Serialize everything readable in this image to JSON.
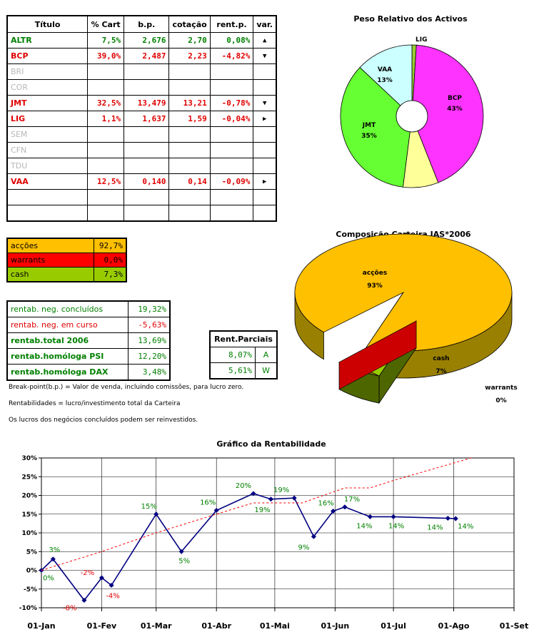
{
  "stocks_table": {
    "headers": [
      "Título",
      "% Cart",
      "b.p.",
      "cotação",
      "rent.p.",
      "var."
    ],
    "rows": [
      {
        "sym": "ALTR",
        "cart": "7,5%",
        "bp": "2,676",
        "cot": "2,70",
        "rent": "0,08%",
        "var": "▲",
        "color": "green"
      },
      {
        "sym": "BCP",
        "cart": "39,0%",
        "bp": "2,487",
        "cot": "2,23",
        "rent": "-4,82%",
        "var": "▼",
        "color": "red"
      },
      {
        "sym": "BRI",
        "cart": "",
        "bp": "",
        "cot": "",
        "rent": "",
        "var": "",
        "color": "gray"
      },
      {
        "sym": "COR",
        "cart": "",
        "bp": "",
        "cot": "",
        "rent": "",
        "var": "",
        "color": "gray"
      },
      {
        "sym": "JMT",
        "cart": "32,5%",
        "bp": "13,479",
        "cot": "13,21",
        "rent": "-0,78%",
        "var": "▼",
        "color": "red"
      },
      {
        "sym": "LIG",
        "cart": "1,1%",
        "bp": "1,637",
        "cot": "1,59",
        "rent": "-0,04%",
        "var": "▶",
        "color": "red"
      },
      {
        "sym": "SEM",
        "cart": "",
        "bp": "",
        "cot": "",
        "rent": "",
        "var": "",
        "color": "gray"
      },
      {
        "sym": "CFN",
        "cart": "",
        "bp": "",
        "cot": "",
        "rent": "",
        "var": "",
        "color": "gray"
      },
      {
        "sym": "TDU",
        "cart": "",
        "bp": "",
        "cot": "",
        "rent": "",
        "var": "",
        "color": "gray"
      },
      {
        "sym": "VAA",
        "cart": "12,5%",
        "bp": "0,140",
        "cot": "0,14",
        "rent": "-0,09%",
        "var": "▶",
        "color": "red"
      },
      {
        "sym": "",
        "cart": "",
        "bp": "",
        "cot": "",
        "rent": "",
        "var": "",
        "color": "gray"
      },
      {
        "sym": "",
        "cart": "",
        "bp": "",
        "cot": "",
        "rent": "",
        "var": "",
        "color": "gray"
      }
    ]
  },
  "composition_table": [
    {
      "label": "acções",
      "value": "92,7%",
      "bg": "#ffc000"
    },
    {
      "label": "warrants",
      "value": "0,0%",
      "bg": "#ff0000"
    },
    {
      "label": "cash",
      "value": "7,3%",
      "bg": "#99cc00"
    }
  ],
  "rent_table": [
    {
      "label": "rentab. neg. concluídos",
      "value": "19,32%",
      "color": "green",
      "bold": false
    },
    {
      "label": "rentab. neg. em curso",
      "value": "-5,63%",
      "color": "red",
      "bold": false
    },
    {
      "label": "rentab.total 2006",
      "value": "13,69%",
      "color": "green",
      "bold": true
    },
    {
      "label": "rentab.homóloga PSI",
      "value": "12,20%",
      "color": "green",
      "bold": true
    },
    {
      "label": "rentab.homóloga DAX",
      "value": "3,48%",
      "color": "green",
      "bold": true
    }
  ],
  "partial_table": {
    "header": "Rent.Parciais",
    "rows": [
      {
        "value": "8,07%",
        "letter": "A"
      },
      {
        "value": "5,61%",
        "letter": "W"
      }
    ]
  },
  "notes": [
    "Break-point(b.p.) = Valor de venda, incluindo comissões, para lucro zero.",
    "Rentabilidades = lucro/investimento total da Carteira",
    "Os lucros dos negócios concluídos podem ser reinvestidos."
  ],
  "colors": {
    "green": "#008000",
    "red": "#e00000",
    "gray": "#b8b8b8"
  },
  "chart_data": [
    {
      "type": "pie",
      "title": "Peso Relativo dos Activos",
      "donut": true,
      "slices": [
        {
          "label": "LIG",
          "value": 1,
          "pct_label": "1%",
          "color": "#99cc33"
        },
        {
          "label": "BCP",
          "value": 43,
          "pct_label": "43%",
          "color": "#ff33ff"
        },
        {
          "label": "",
          "value": 8,
          "pct_label": "",
          "color": "#ffff99"
        },
        {
          "label": "JMT",
          "value": 35,
          "pct_label": "35%",
          "color": "#66ff33"
        },
        {
          "label": "VAA",
          "value": 13,
          "pct_label": "13%",
          "color": "#ccffff"
        }
      ]
    },
    {
      "type": "pie",
      "title": "Composição Carteira JAS*2006",
      "three_d": true,
      "slices": [
        {
          "label": "acções",
          "value": 93,
          "pct_label": "93%",
          "color": "#ffc000",
          "side": "#998000"
        },
        {
          "label": "cash",
          "value": 7,
          "pct_label": "7%",
          "color": "#99cc00",
          "side": "#4d6600"
        },
        {
          "label": "warrants",
          "value": 0,
          "pct_label": "0%",
          "color": "#cc0000",
          "side": "#800000"
        }
      ]
    },
    {
      "type": "line",
      "title": "Gráfico da Rentabilidade",
      "x_tick_labels": [
        "01-Jan",
        "01-Fev",
        "01-Mar",
        "01-Abr",
        "01-Mai",
        "01-Jun",
        "01-Jul",
        "01-Ago",
        "01-Set"
      ],
      "y_tick_labels": [
        "30%",
        "25%",
        "20%",
        "15%",
        "10%",
        "5%",
        "0%",
        "-5%",
        "-10%"
      ],
      "ylim": [
        -10,
        30
      ],
      "grid": true,
      "series": [
        {
          "style": "solid",
          "color": "#000080",
          "points": [
            {
              "x": "2006-01-01",
              "y": 0,
              "label": "0%"
            },
            {
              "x": "2006-01-07",
              "y": 3,
              "label": "3%"
            },
            {
              "x": "2006-01-23",
              "y": -8,
              "label": "-8%"
            },
            {
              "x": "2006-02-01",
              "y": -2,
              "label": "-2%"
            },
            {
              "x": "2006-02-06",
              "y": -4,
              "label": "-4%"
            },
            {
              "x": "2006-03-01",
              "y": 15,
              "label": "15%"
            },
            {
              "x": "2006-03-14",
              "y": 5,
              "label": "5%"
            },
            {
              "x": "2006-04-01",
              "y": 16,
              "label": "16%"
            },
            {
              "x": "2006-04-20",
              "y": 20.5,
              "label": "20%"
            },
            {
              "x": "2006-04-29",
              "y": 19,
              "label": "19%"
            },
            {
              "x": "2006-05-11",
              "y": 19.3,
              "label": "19%"
            },
            {
              "x": "2006-05-21",
              "y": 9,
              "label": "9%"
            },
            {
              "x": "2006-05-31",
              "y": 15.8,
              "label": "16%"
            },
            {
              "x": "2006-06-06",
              "y": 16.9,
              "label": "17%"
            },
            {
              "x": "2006-06-19",
              "y": 14.3,
              "label": "14%"
            },
            {
              "x": "2006-07-01",
              "y": 14.3,
              "label": "14%"
            },
            {
              "x": "2006-07-29",
              "y": 13.9,
              "label": "14%"
            },
            {
              "x": "2006-08-02",
              "y": 13.8,
              "label": "14%"
            }
          ]
        },
        {
          "style": "dashed",
          "color": "#ff0000",
          "points": [
            {
              "x": "2006-01-01",
              "y": 0
            },
            {
              "x": "2006-02-01",
              "y": 5
            },
            {
              "x": "2006-03-01",
              "y": 10
            },
            {
              "x": "2006-04-01",
              "y": 15
            },
            {
              "x": "2006-04-20",
              "y": 18
            },
            {
              "x": "2006-05-15",
              "y": 18
            },
            {
              "x": "2006-06-06",
              "y": 22
            },
            {
              "x": "2006-06-19",
              "y": 22
            },
            {
              "x": "2006-07-01",
              "y": 24
            },
            {
              "x": "2006-08-10",
              "y": 30
            }
          ]
        }
      ]
    }
  ]
}
